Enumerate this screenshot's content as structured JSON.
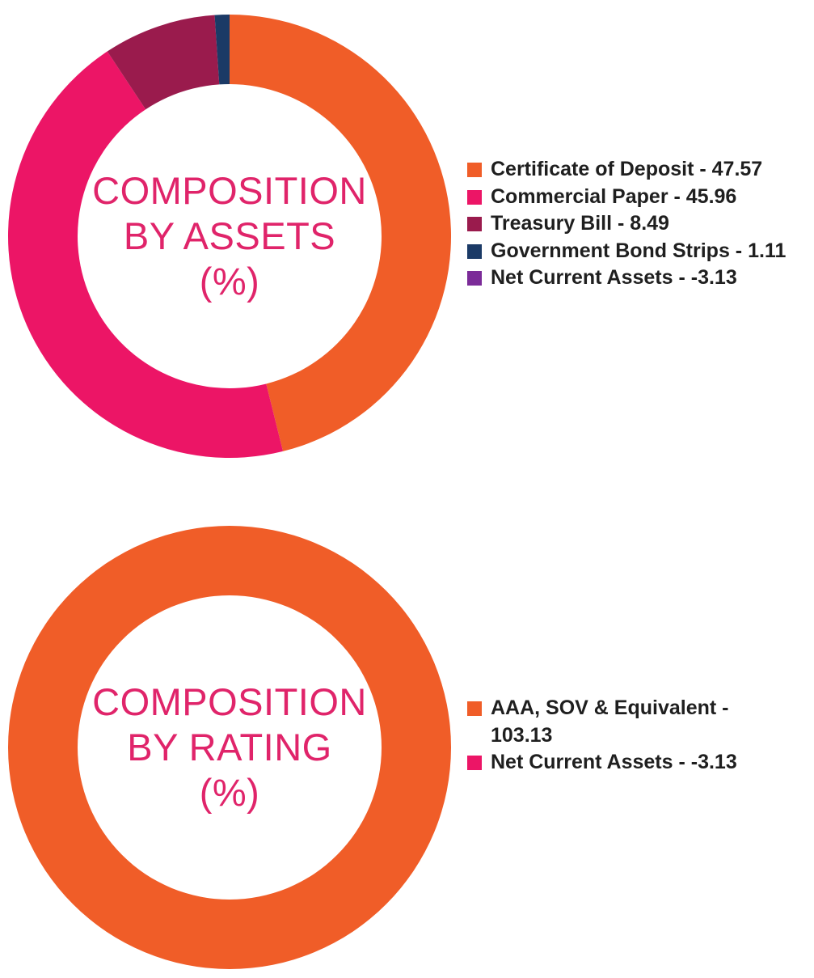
{
  "chart_data": [
    {
      "type": "pie",
      "title": "COMPOSITION BY ASSETS (%)",
      "title_lines": [
        "COMPOSITION",
        "BY ASSETS",
        "(%)"
      ],
      "slices": [
        {
          "name": "Certificate of Deposit",
          "value": 47.57,
          "color": "#f05d28",
          "label": "Certificate of Deposit - 47.57"
        },
        {
          "name": "Commercial Paper",
          "value": 45.96,
          "color": "#ec1566",
          "label": "Commercial Paper - 45.96"
        },
        {
          "name": "Treasury Bill",
          "value": 8.49,
          "color": "#9a1b4d",
          "label": "Treasury Bill - 8.49"
        },
        {
          "name": "Government Bond Strips",
          "value": 1.11,
          "color": "#1b3a66",
          "label": "Government Bond Strips - 1.11"
        },
        {
          "name": "Net Current Assets",
          "value": -3.13,
          "color": "#7b2b98",
          "label": "Net Current Assets - -3.13"
        }
      ],
      "legend": "right"
    },
    {
      "type": "pie",
      "title": "COMPOSITION BY RATING (%)",
      "title_lines": [
        "COMPOSITION",
        "BY RATING",
        "(%)"
      ],
      "slices": [
        {
          "name": "AAA, SOV & Equivalent",
          "value": 103.13,
          "color": "#f05d28",
          "label": "AAA, SOV & Equivalent - 103.13"
        },
        {
          "name": "Net Current Assets",
          "value": -3.13,
          "color": "#ec1566",
          "label": "Net Current Assets - -3.13"
        }
      ],
      "legend": "right"
    }
  ]
}
